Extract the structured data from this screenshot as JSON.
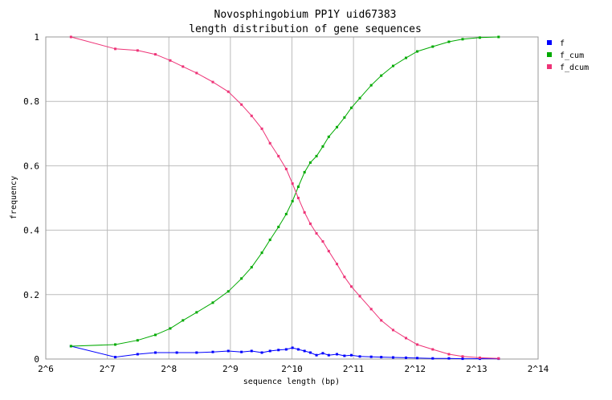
{
  "chart_data": {
    "type": "line",
    "title": "Novosphingobium PP1Y uid67383",
    "subtitle": "length distribution of gene sequences",
    "xlabel": "sequence length (bp)",
    "ylabel": "frequency",
    "x_scale": "log2",
    "xlim": [
      64,
      16384
    ],
    "ylim": [
      0,
      1
    ],
    "x_ticks": [
      {
        "value": 64,
        "label": "2^6"
      },
      {
        "value": 128,
        "label": "2^7"
      },
      {
        "value": 256,
        "label": "2^8"
      },
      {
        "value": 512,
        "label": "2^9"
      },
      {
        "value": 1024,
        "label": "2^10"
      },
      {
        "value": 2048,
        "label": "2^11"
      },
      {
        "value": 4096,
        "label": "2^12"
      },
      {
        "value": 8192,
        "label": "2^13"
      },
      {
        "value": 16384,
        "label": "2^14"
      }
    ],
    "y_ticks": [
      {
        "value": 0,
        "label": "0"
      },
      {
        "value": 0.2,
        "label": "0.2"
      },
      {
        "value": 0.4,
        "label": "0.4"
      },
      {
        "value": 0.6,
        "label": "0.6"
      },
      {
        "value": 0.8,
        "label": "0.8"
      },
      {
        "value": 1,
        "label": "1"
      }
    ],
    "grid": true,
    "legend_position": "right",
    "series": [
      {
        "name": "f",
        "color": "#0000ff",
        "points": [
          [
            85,
            0.04
          ],
          [
            140,
            0.006
          ],
          [
            180,
            0.015
          ],
          [
            220,
            0.02
          ],
          [
            280,
            0.02
          ],
          [
            350,
            0.02
          ],
          [
            420,
            0.022
          ],
          [
            500,
            0.025
          ],
          [
            580,
            0.022
          ],
          [
            650,
            0.025
          ],
          [
            730,
            0.02
          ],
          [
            800,
            0.025
          ],
          [
            880,
            0.028
          ],
          [
            960,
            0.03
          ],
          [
            1030,
            0.035
          ],
          [
            1100,
            0.03
          ],
          [
            1180,
            0.025
          ],
          [
            1260,
            0.02
          ],
          [
            1350,
            0.012
          ],
          [
            1450,
            0.018
          ],
          [
            1550,
            0.012
          ],
          [
            1700,
            0.015
          ],
          [
            1850,
            0.01
          ],
          [
            2000,
            0.012
          ],
          [
            2200,
            0.008
          ],
          [
            2500,
            0.007
          ],
          [
            2800,
            0.006
          ],
          [
            3200,
            0.005
          ],
          [
            3700,
            0.004
          ],
          [
            4200,
            0.003
          ],
          [
            5000,
            0.002
          ],
          [
            6000,
            0.002
          ],
          [
            7000,
            0.001
          ],
          [
            8500,
            0.001
          ],
          [
            10500,
            0.001
          ]
        ]
      },
      {
        "name": "f_cum",
        "color": "#00aa00",
        "points": [
          [
            85,
            0.04
          ],
          [
            140,
            0.045
          ],
          [
            180,
            0.058
          ],
          [
            220,
            0.075
          ],
          [
            260,
            0.095
          ],
          [
            300,
            0.12
          ],
          [
            350,
            0.145
          ],
          [
            420,
            0.175
          ],
          [
            500,
            0.21
          ],
          [
            580,
            0.25
          ],
          [
            650,
            0.285
          ],
          [
            730,
            0.33
          ],
          [
            800,
            0.37
          ],
          [
            880,
            0.41
          ],
          [
            960,
            0.45
          ],
          [
            1030,
            0.49
          ],
          [
            1100,
            0.535
          ],
          [
            1180,
            0.58
          ],
          [
            1260,
            0.61
          ],
          [
            1350,
            0.63
          ],
          [
            1450,
            0.66
          ],
          [
            1550,
            0.69
          ],
          [
            1700,
            0.72
          ],
          [
            1850,
            0.75
          ],
          [
            2000,
            0.78
          ],
          [
            2200,
            0.81
          ],
          [
            2500,
            0.85
          ],
          [
            2800,
            0.88
          ],
          [
            3200,
            0.91
          ],
          [
            3700,
            0.935
          ],
          [
            4200,
            0.955
          ],
          [
            5000,
            0.97
          ],
          [
            6000,
            0.985
          ],
          [
            7000,
            0.993
          ],
          [
            8500,
            0.998
          ],
          [
            10500,
            1.0
          ]
        ]
      },
      {
        "name": "f_dcum",
        "color": "#ee3377",
        "points": [
          [
            85,
            1.0
          ],
          [
            140,
            0.963
          ],
          [
            180,
            0.958
          ],
          [
            220,
            0.946
          ],
          [
            260,
            0.927
          ],
          [
            300,
            0.908
          ],
          [
            350,
            0.888
          ],
          [
            420,
            0.86
          ],
          [
            500,
            0.83
          ],
          [
            580,
            0.79
          ],
          [
            650,
            0.755
          ],
          [
            730,
            0.715
          ],
          [
            800,
            0.67
          ],
          [
            880,
            0.63
          ],
          [
            960,
            0.59
          ],
          [
            1030,
            0.545
          ],
          [
            1100,
            0.5
          ],
          [
            1180,
            0.455
          ],
          [
            1260,
            0.42
          ],
          [
            1350,
            0.39
          ],
          [
            1450,
            0.365
          ],
          [
            1550,
            0.335
          ],
          [
            1700,
            0.295
          ],
          [
            1850,
            0.255
          ],
          [
            2000,
            0.225
          ],
          [
            2200,
            0.195
          ],
          [
            2500,
            0.155
          ],
          [
            2800,
            0.12
          ],
          [
            3200,
            0.09
          ],
          [
            3700,
            0.065
          ],
          [
            4200,
            0.045
          ],
          [
            5000,
            0.03
          ],
          [
            6000,
            0.015
          ],
          [
            7000,
            0.008
          ],
          [
            8500,
            0.004
          ],
          [
            10500,
            0.002
          ]
        ]
      }
    ]
  }
}
